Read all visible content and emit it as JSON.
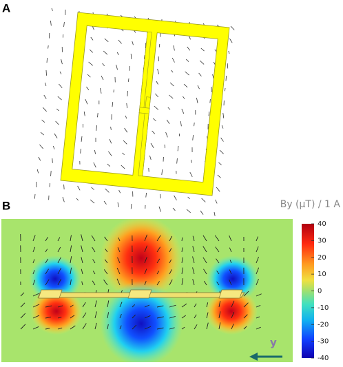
{
  "panel_a": {
    "label": "A"
  },
  "panel_b": {
    "label": "B",
    "axis_label": "y",
    "colorbar": {
      "title": "By (µT) / 1 A",
      "lim": [
        -40,
        40
      ],
      "ticks": [
        40,
        30,
        20,
        10,
        0,
        -10,
        -20,
        -30,
        -40
      ]
    }
  }
}
